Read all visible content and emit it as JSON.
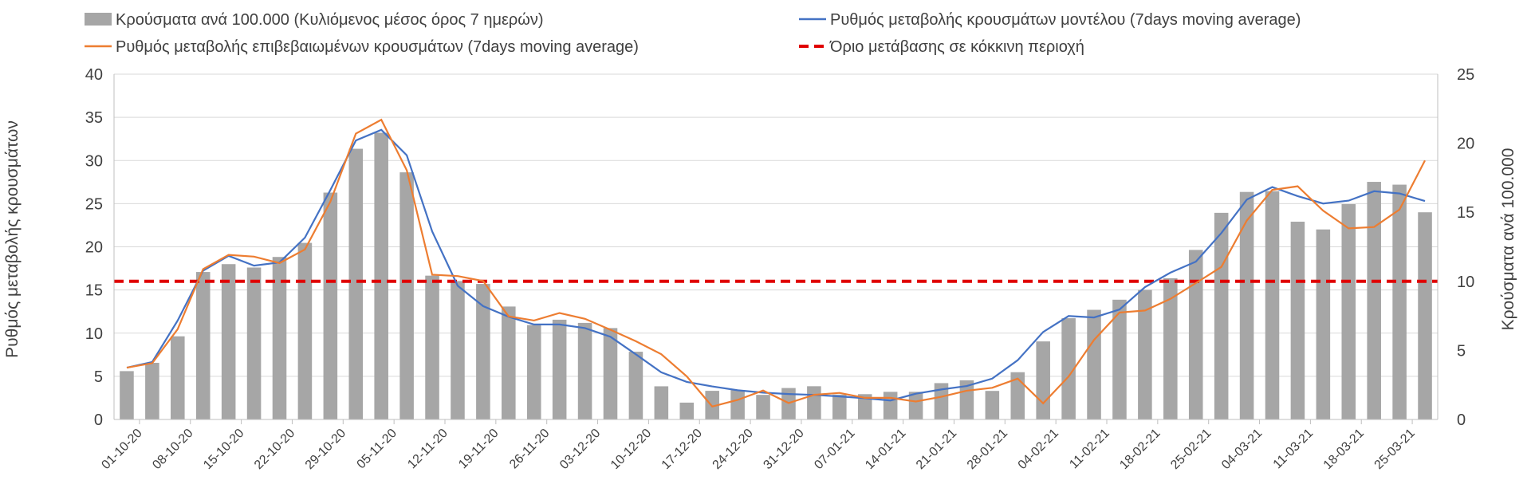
{
  "chart_data": {
    "type": "bar+line",
    "colors": {
      "bars": "#a6a6a6",
      "model_line": "#4472c4",
      "confirmed_line": "#ed7d31",
      "threshold": "#e00000",
      "grid": "#d9d9d9",
      "axis": "#bfbfbf",
      "text": "#404040"
    },
    "legend": {
      "bars": "Κρούσματα ανά 100.000 (Κυλιόμενος μέσος όρος 7 ημερών)",
      "model": "Ρυθμός μεταβολής κρουσμάτων μοντέλου (7days moving average)",
      "confirmed": "Ρυθμός μεταβολής επιβεβαιωμένων κρουσμάτων (7days moving average)",
      "threshold": "Όριο μετάβασης σε κόκκινη περιοχή"
    },
    "y_left": {
      "label": "Ρυθμός μεταβολής κρουσμάτων",
      "min": 0,
      "max": 40,
      "step": 5,
      "ticks": [
        "0",
        "5",
        "10",
        "15",
        "20",
        "25",
        "30",
        "35",
        "40"
      ]
    },
    "y_right": {
      "label": "Κρούσματα ανά 100.000",
      "min": 0,
      "max": 25,
      "step": 5,
      "ticks": [
        "0",
        "5",
        "10",
        "15",
        "20",
        "25"
      ]
    },
    "x_labels": [
      "01-10-20",
      "08-10-20",
      "15-10-20",
      "22-10-20",
      "29-10-20",
      "05-11-20",
      "12-11-20",
      "19-11-20",
      "26-11-20",
      "03-12-20",
      "10-12-20",
      "17-12-20",
      "24-12-20",
      "31-12-20",
      "07-01-21",
      "14-01-21",
      "21-01-21",
      "28-01-21",
      "04-02-21",
      "11-02-21",
      "18-02-21",
      "25-02-21",
      "04-03-21",
      "11-03-21",
      "18-03-21",
      "25-03-21"
    ],
    "label_every_days": 7,
    "n_days": 183,
    "threshold_value": 16,
    "bar_keypoints": [
      [
        0,
        3.5
      ],
      [
        3,
        4
      ],
      [
        6,
        4.2
      ],
      [
        8,
        5
      ],
      [
        10,
        7
      ],
      [
        13,
        10.5
      ],
      [
        16,
        11.5
      ],
      [
        20,
        11
      ],
      [
        24,
        11
      ],
      [
        28,
        12
      ],
      [
        31,
        12.5
      ],
      [
        34,
        14
      ],
      [
        37,
        17.5
      ],
      [
        40,
        19.5
      ],
      [
        43,
        20
      ],
      [
        45,
        20.8
      ],
      [
        48,
        19.5
      ],
      [
        50,
        17.5
      ],
      [
        52,
        14
      ],
      [
        54,
        10.5
      ],
      [
        56,
        9
      ],
      [
        58,
        9.8
      ],
      [
        60,
        10.5
      ],
      [
        62,
        10
      ],
      [
        65,
        9.5
      ],
      [
        68,
        8
      ],
      [
        70,
        6.5
      ],
      [
        72,
        6.8
      ],
      [
        75,
        7.5
      ],
      [
        78,
        7
      ],
      [
        81,
        7
      ],
      [
        85,
        6.8
      ],
      [
        88,
        6
      ],
      [
        91,
        4.5
      ],
      [
        94,
        3
      ],
      [
        96,
        1.3
      ],
      [
        100,
        1.2
      ],
      [
        103,
        2
      ],
      [
        106,
        2.3
      ],
      [
        110,
        2
      ],
      [
        115,
        1.6
      ],
      [
        118,
        2.5
      ],
      [
        122,
        2.4
      ],
      [
        126,
        1.8
      ],
      [
        130,
        1.8
      ],
      [
        135,
        2
      ],
      [
        140,
        2
      ],
      [
        144,
        2.6
      ],
      [
        148,
        3
      ],
      [
        152,
        2.2
      ],
      [
        154,
        2
      ],
      [
        156,
        2.5
      ],
      [
        159,
        4
      ],
      [
        162,
        5.5
      ],
      [
        166,
        7.2
      ],
      [
        170,
        7.8
      ],
      [
        174,
        8.2
      ],
      [
        178,
        9.2
      ],
      [
        182,
        9.5
      ],
      [
        186,
        10.5
      ],
      [
        189,
        12
      ],
      [
        192,
        14
      ],
      [
        195,
        15.5
      ],
      [
        198,
        16.3
      ],
      [
        201,
        17.5
      ],
      [
        204,
        16
      ],
      [
        207,
        14.5
      ],
      [
        210,
        13.3
      ],
      [
        213,
        14
      ],
      [
        216,
        15
      ],
      [
        218,
        17.5
      ],
      [
        220,
        17.3
      ],
      [
        223,
        17
      ],
      [
        226,
        17
      ],
      [
        229,
        16.8
      ],
      [
        230,
        15
      ]
    ],
    "confirmed_keypoints": [
      [
        0,
        6
      ],
      [
        5,
        6.5
      ],
      [
        8,
        7
      ],
      [
        10,
        10
      ],
      [
        13,
        15
      ],
      [
        16,
        18
      ],
      [
        20,
        19
      ],
      [
        24,
        19.5
      ],
      [
        28,
        18
      ],
      [
        30,
        17.5
      ],
      [
        32,
        19
      ],
      [
        34,
        21
      ],
      [
        37,
        19
      ],
      [
        41,
        25
      ],
      [
        44,
        32
      ],
      [
        47,
        33.5
      ],
      [
        49,
        33
      ],
      [
        51,
        35
      ],
      [
        53,
        33.5
      ],
      [
        55,
        30
      ],
      [
        57,
        28.5
      ],
      [
        59,
        27
      ],
      [
        61,
        20
      ],
      [
        62,
        15
      ],
      [
        64,
        14
      ],
      [
        66,
        17
      ],
      [
        68,
        16
      ],
      [
        70,
        17
      ],
      [
        72,
        16
      ],
      [
        74,
        15
      ],
      [
        77,
        12
      ],
      [
        79,
        10
      ],
      [
        82,
        11.5
      ],
      [
        85,
        11
      ],
      [
        87,
        12.5
      ],
      [
        90,
        11
      ],
      [
        93,
        11.8
      ],
      [
        96,
        10.5
      ],
      [
        99,
        10.3
      ],
      [
        101,
        9.5
      ],
      [
        103,
        9
      ],
      [
        104,
        7.8
      ],
      [
        106,
        8.5
      ],
      [
        109,
        7
      ],
      [
        111,
        6
      ],
      [
        113,
        5
      ],
      [
        115,
        4
      ],
      [
        117,
        1.5
      ],
      [
        121,
        1.5
      ],
      [
        124,
        2.5
      ],
      [
        126,
        3
      ],
      [
        128,
        3.5
      ],
      [
        131,
        2.5
      ],
      [
        133,
        2
      ],
      [
        136,
        1.5
      ],
      [
        139,
        3
      ],
      [
        142,
        3.2
      ],
      [
        145,
        3
      ],
      [
        149,
        2.5
      ],
      [
        155,
        2.5
      ],
      [
        160,
        2
      ],
      [
        164,
        2.6
      ],
      [
        168,
        2.8
      ],
      [
        170,
        3.5
      ],
      [
        172,
        4
      ],
      [
        174,
        3.5
      ],
      [
        178,
        4.5
      ],
      [
        182,
        5
      ],
      [
        185,
        1.8
      ],
      [
        187,
        2.5
      ],
      [
        189,
        4
      ],
      [
        191,
        5.8
      ],
      [
        193,
        7
      ],
      [
        195,
        9
      ],
      [
        198,
        12
      ],
      [
        201,
        12.5
      ],
      [
        203,
        11.5
      ],
      [
        205,
        12.5
      ],
      [
        207,
        13
      ],
      [
        209,
        12.8
      ],
      [
        210,
        13.5
      ],
      [
        212,
        15
      ],
      [
        214,
        15.5
      ],
      [
        217,
        16
      ],
      [
        220,
        17
      ],
      [
        224,
        20
      ],
      [
        226,
        23
      ],
      [
        228,
        25.5
      ],
      [
        230,
        26
      ],
      [
        232,
        27
      ],
      [
        235,
        28
      ],
      [
        237,
        26.5
      ],
      [
        239,
        25
      ],
      [
        242,
        24
      ],
      [
        244,
        23
      ],
      [
        247,
        22
      ],
      [
        250,
        21
      ],
      [
        252,
        22.5
      ],
      [
        255,
        24
      ],
      [
        258,
        24.5
      ],
      [
        260,
        26
      ],
      [
        262,
        30
      ]
    ],
    "model_keypoints": [
      [
        0,
        6
      ],
      [
        5,
        6.5
      ],
      [
        8,
        8
      ],
      [
        11,
        12
      ],
      [
        15,
        16.5
      ],
      [
        18,
        19
      ],
      [
        21,
        19
      ],
      [
        25,
        18
      ],
      [
        29,
        17.5
      ],
      [
        33,
        18.5
      ],
      [
        37,
        21
      ],
      [
        41,
        25
      ],
      [
        44,
        28.5
      ],
      [
        47,
        32
      ],
      [
        50,
        33.5
      ],
      [
        52,
        33.8
      ],
      [
        55,
        33
      ],
      [
        58,
        31
      ],
      [
        61,
        26
      ],
      [
        64,
        21
      ],
      [
        67,
        17
      ],
      [
        70,
        14.5
      ],
      [
        73,
        13.5
      ],
      [
        76,
        12.5
      ],
      [
        80,
        11.8
      ],
      [
        84,
        11
      ],
      [
        88,
        11
      ],
      [
        92,
        11
      ],
      [
        96,
        10.5
      ],
      [
        101,
        9.5
      ],
      [
        106,
        7.5
      ],
      [
        111,
        5.5
      ],
      [
        115,
        4.5
      ],
      [
        120,
        4
      ],
      [
        125,
        3.5
      ],
      [
        130,
        3.2
      ],
      [
        135,
        3
      ],
      [
        140,
        2.9
      ],
      [
        145,
        2.8
      ],
      [
        150,
        2.6
      ],
      [
        155,
        2.4
      ],
      [
        158,
        2.2
      ],
      [
        160,
        2.2
      ],
      [
        163,
        2.8
      ],
      [
        166,
        3.3
      ],
      [
        170,
        3.5
      ],
      [
        174,
        3.8
      ],
      [
        178,
        4.2
      ],
      [
        181,
        5
      ],
      [
        184,
        6
      ],
      [
        187,
        8
      ],
      [
        190,
        9.8
      ],
      [
        193,
        11.5
      ],
      [
        196,
        12
      ],
      [
        199,
        11.6
      ],
      [
        203,
        12
      ],
      [
        206,
        12.5
      ],
      [
        208,
        13.5
      ],
      [
        211,
        15
      ],
      [
        214,
        16.3
      ],
      [
        217,
        17
      ],
      [
        220,
        17.5
      ],
      [
        223,
        18.5
      ],
      [
        226,
        20.5
      ],
      [
        229,
        22.5
      ],
      [
        232,
        25
      ],
      [
        235,
        26.5
      ],
      [
        237,
        27
      ],
      [
        240,
        26.8
      ],
      [
        243,
        26
      ],
      [
        246,
        25.3
      ],
      [
        249,
        25
      ],
      [
        252,
        25
      ],
      [
        255,
        25.5
      ],
      [
        258,
        26.3
      ],
      [
        261,
        26.6
      ],
      [
        264,
        26.3
      ],
      [
        267,
        25.8
      ],
      [
        270,
        25.3
      ]
    ]
  }
}
